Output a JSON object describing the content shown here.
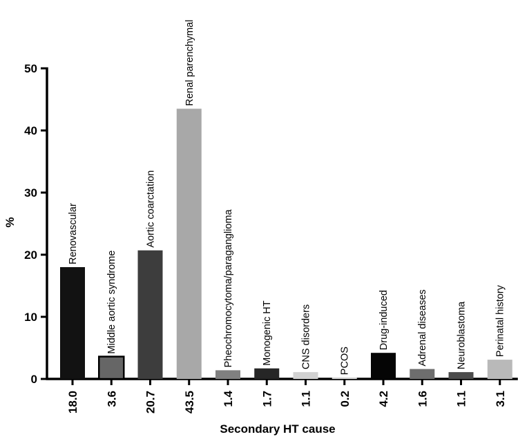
{
  "chart_data": {
    "type": "bar",
    "title": "",
    "xlabel": "Secondary HT cause",
    "ylabel": "%",
    "ylim": [
      0,
      50
    ],
    "yticks": [
      0,
      10,
      20,
      30,
      40,
      50
    ],
    "grid": false,
    "categories": [
      "Renovascular",
      "Middle aortic syndrome",
      "Aortic coarctation",
      "Renal parenchymal",
      "Pheochromocytoma/paraganglioma",
      "Monogenic HT",
      "CNS disorders",
      "PCOS",
      "Drug-induced",
      "Adrenal diseases",
      "Neuroblastoma",
      "Perinatal history"
    ],
    "values": [
      18.0,
      3.6,
      20.7,
      43.5,
      1.4,
      1.7,
      1.1,
      0.2,
      4.2,
      1.6,
      1.1,
      3.1
    ],
    "value_labels": [
      "18.0",
      "3.6",
      "20.7",
      "43.5",
      "1.4",
      "1.7",
      "1.1",
      "0.2",
      "4.2",
      "1.6",
      "1.1",
      "3.1"
    ],
    "colors": [
      "#121212",
      "#666666",
      "#3d3d3d",
      "#a8a8a8",
      "#808080",
      "#262626",
      "#d2d2d2",
      "#dcdcdc",
      "#050505",
      "#6e6e6e",
      "#4c4c4c",
      "#b9b9b9"
    ],
    "bar_borders": [
      false,
      true,
      false,
      false,
      false,
      false,
      false,
      false,
      false,
      false,
      false,
      false
    ]
  }
}
